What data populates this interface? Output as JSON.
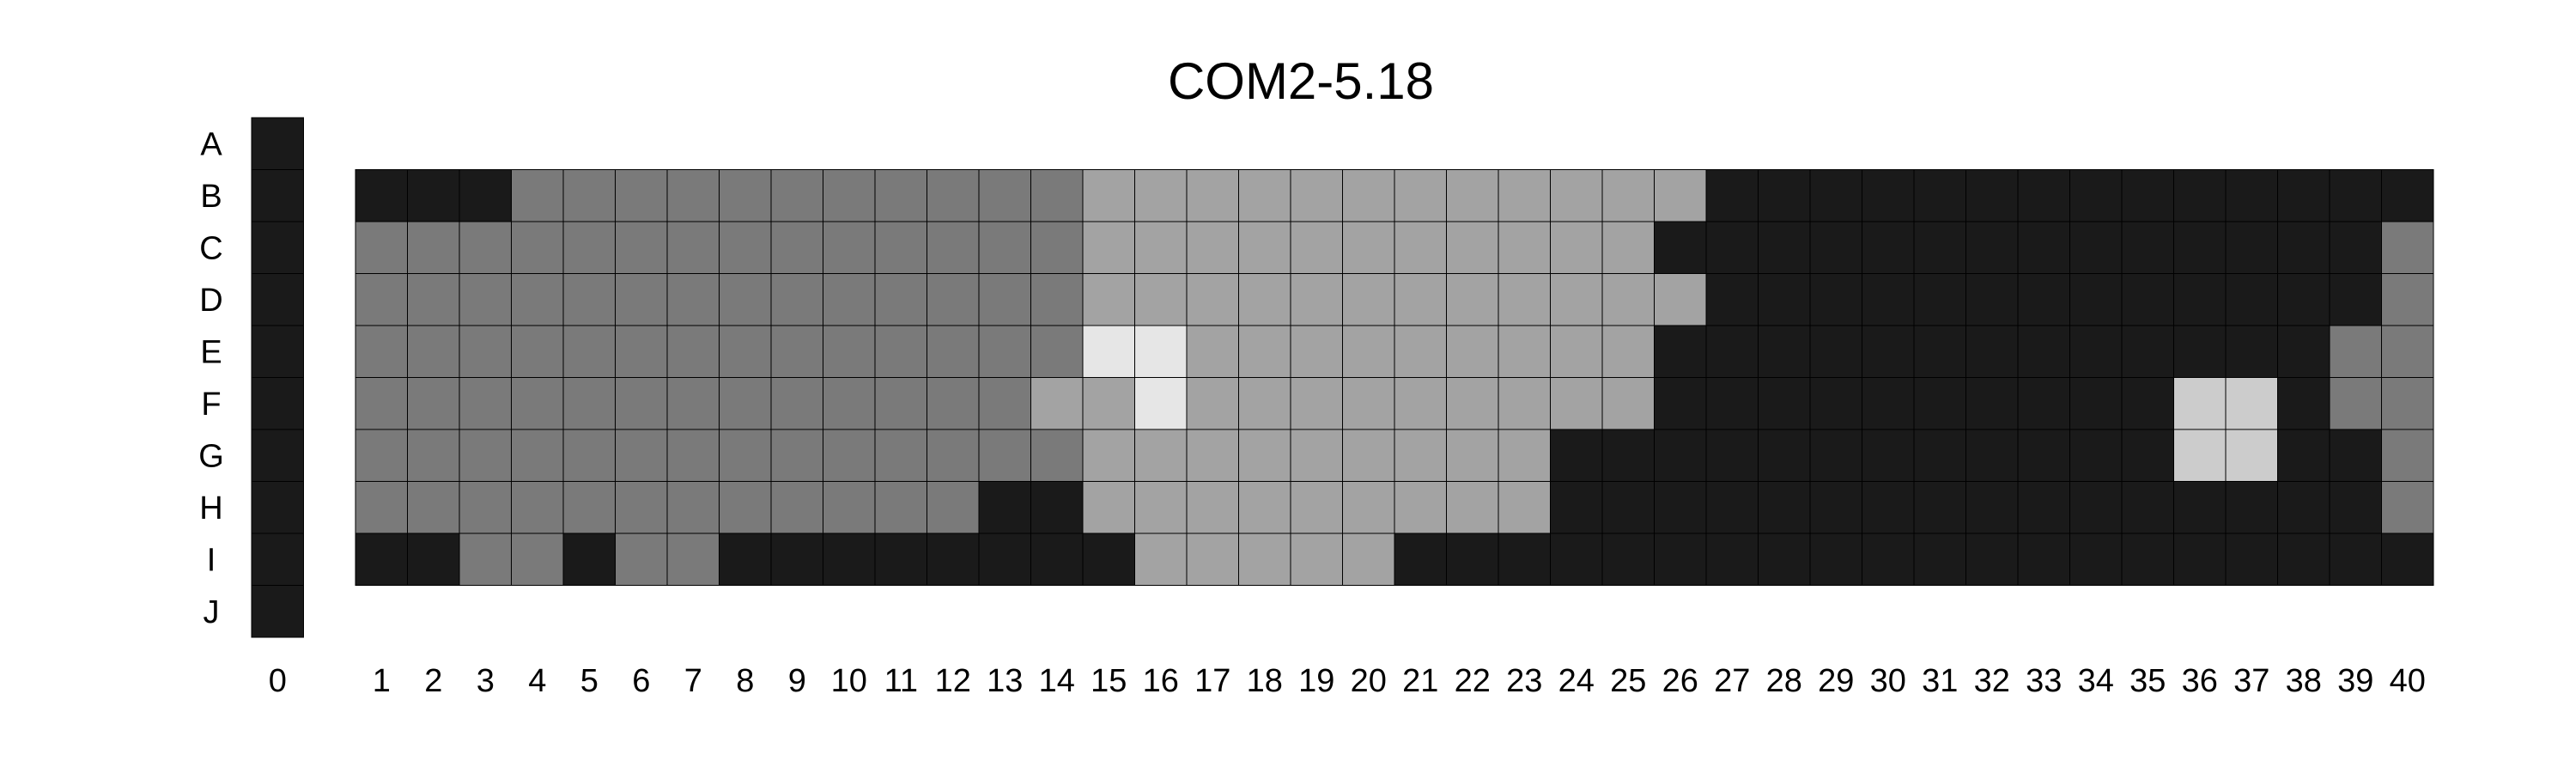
{
  "chart_data": {
    "type": "heatmap",
    "title": "COM2-5.18",
    "rows": [
      "A",
      "B",
      "C",
      "D",
      "E",
      "F",
      "G",
      "H",
      "I",
      "J"
    ],
    "columns": [
      "0",
      "1",
      "2",
      "3",
      "4",
      "5",
      "6",
      "7",
      "8",
      "9",
      "10",
      "11",
      "12",
      "13",
      "14",
      "15",
      "16",
      "17",
      "18",
      "19",
      "20",
      "21",
      "22",
      "23",
      "24",
      "25",
      "26",
      "27",
      "28",
      "29",
      "30",
      "31",
      "32",
      "33",
      "34",
      "35",
      "36",
      "37",
      "38",
      "39",
      "40"
    ],
    "levels": {
      "0": "#1a1a1a",
      "1": "#7a7a7a",
      "2": "#a3a3a3",
      "3": "#cccccc",
      "4": "#e6e6e6"
    },
    "column_0_rows": [
      "A",
      "B",
      "C",
      "D",
      "E",
      "F",
      "G",
      "H",
      "I",
      "J"
    ],
    "column_0_value": 0,
    "plate_rows": [
      "B",
      "C",
      "D",
      "E",
      "F",
      "G",
      "H",
      "I"
    ],
    "plate_values": [
      [
        0,
        0,
        0,
        1,
        1,
        1,
        1,
        1,
        1,
        1,
        1,
        1,
        1,
        1,
        2,
        2,
        2,
        2,
        2,
        2,
        2,
        2,
        2,
        2,
        2,
        2,
        0,
        0,
        0,
        0,
        0,
        0,
        0,
        0,
        0,
        0,
        0,
        0,
        0,
        0
      ],
      [
        1,
        1,
        1,
        1,
        1,
        1,
        1,
        1,
        1,
        1,
        1,
        1,
        1,
        1,
        2,
        2,
        2,
        2,
        2,
        2,
        2,
        2,
        2,
        2,
        2,
        0,
        0,
        0,
        0,
        0,
        0,
        0,
        0,
        0,
        0,
        0,
        0,
        0,
        0,
        1
      ],
      [
        1,
        1,
        1,
        1,
        1,
        1,
        1,
        1,
        1,
        1,
        1,
        1,
        1,
        1,
        2,
        2,
        2,
        2,
        2,
        2,
        2,
        2,
        2,
        2,
        2,
        2,
        0,
        0,
        0,
        0,
        0,
        0,
        0,
        0,
        0,
        0,
        0,
        0,
        0,
        1
      ],
      [
        1,
        1,
        1,
        1,
        1,
        1,
        1,
        1,
        1,
        1,
        1,
        1,
        1,
        1,
        4,
        4,
        2,
        2,
        2,
        2,
        2,
        2,
        2,
        2,
        2,
        0,
        0,
        0,
        0,
        0,
        0,
        0,
        0,
        0,
        0,
        0,
        0,
        0,
        1,
        1
      ],
      [
        1,
        1,
        1,
        1,
        1,
        1,
        1,
        1,
        1,
        1,
        1,
        1,
        1,
        2,
        2,
        4,
        2,
        2,
        2,
        2,
        2,
        2,
        2,
        2,
        2,
        0,
        0,
        0,
        0,
        0,
        0,
        0,
        0,
        0,
        0,
        3,
        3,
        0,
        1,
        1
      ],
      [
        1,
        1,
        1,
        1,
        1,
        1,
        1,
        1,
        1,
        1,
        1,
        1,
        1,
        1,
        2,
        2,
        2,
        2,
        2,
        2,
        2,
        2,
        2,
        0,
        0,
        0,
        0,
        0,
        0,
        0,
        0,
        0,
        0,
        0,
        0,
        3,
        3,
        0,
        0,
        1
      ],
      [
        1,
        1,
        1,
        1,
        1,
        1,
        1,
        1,
        1,
        1,
        1,
        1,
        0,
        0,
        2,
        2,
        2,
        2,
        2,
        2,
        2,
        2,
        2,
        0,
        0,
        0,
        0,
        0,
        0,
        0,
        0,
        0,
        0,
        0,
        0,
        0,
        0,
        0,
        0,
        1
      ],
      [
        0,
        0,
        1,
        1,
        0,
        1,
        1,
        0,
        0,
        0,
        0,
        0,
        0,
        0,
        0,
        2,
        2,
        2,
        2,
        2,
        0,
        0,
        0,
        0,
        0,
        0,
        0,
        0,
        0,
        0,
        0,
        0,
        0,
        0,
        0,
        0,
        0,
        0,
        0,
        0
      ]
    ]
  }
}
